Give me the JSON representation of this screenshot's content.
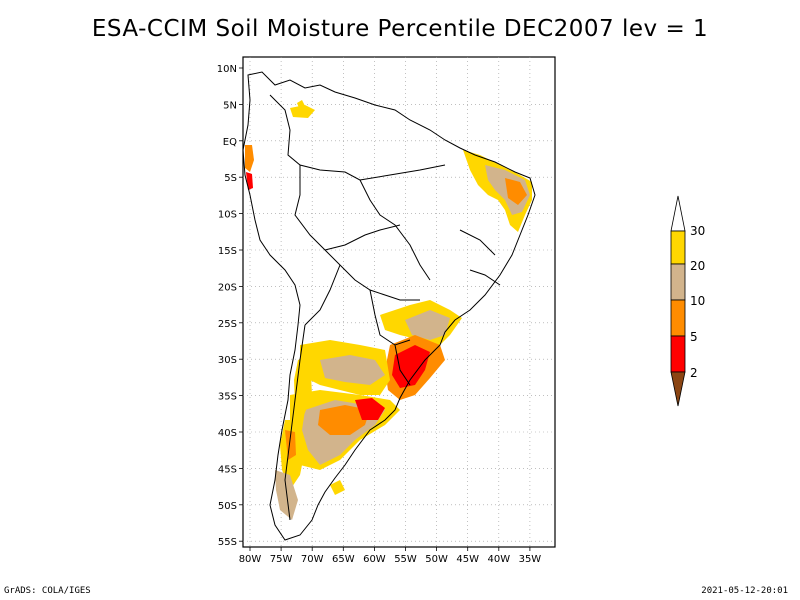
{
  "title": "ESA-CCIM Soil Moisture Percentile DEC2007 lev = 1",
  "map": {
    "lat_labels": [
      "10N",
      "5N",
      "EQ",
      "5S",
      "10S",
      "15S",
      "20S",
      "25S",
      "30S",
      "35S",
      "40S",
      "45S",
      "50S",
      "55S"
    ],
    "lon_labels": [
      "80W",
      "75W",
      "70W",
      "65W",
      "60W",
      "55W",
      "50W",
      "45W",
      "40W",
      "35W"
    ]
  },
  "colorbar": {
    "labels": [
      "30",
      "20",
      "10",
      "5",
      "2"
    ],
    "colors": [
      "#ffffff",
      "#ffd700",
      "#d2b48c",
      "#ff8c00",
      "#ff0000",
      "#8b4513"
    ]
  },
  "legend_colors": {
    "percentile_2_5": "#ff0000",
    "percentile_5_10": "#ff8c00",
    "percentile_10_20": "#d2b48c",
    "percentile_20_30": "#ffd700"
  },
  "footer": {
    "left": "GrADS: COLA/IGES",
    "right": "2021-05-12-20:01"
  }
}
